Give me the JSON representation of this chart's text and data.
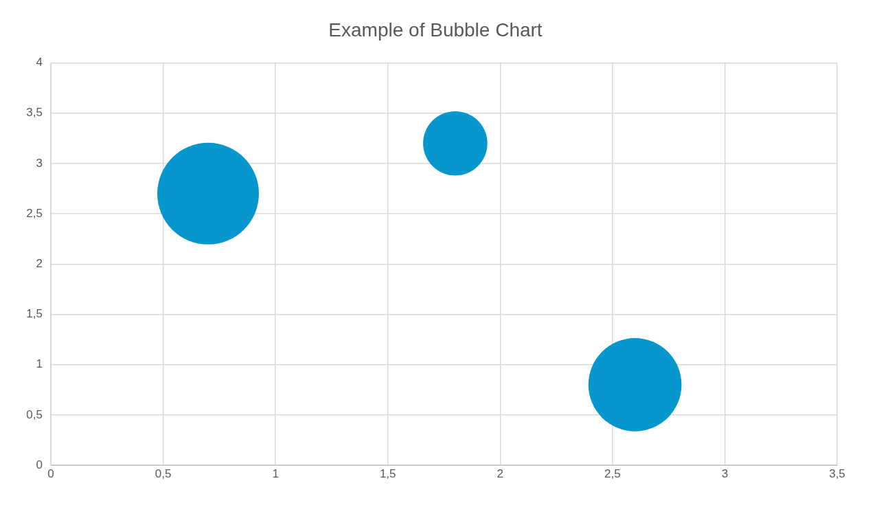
{
  "chart_data": {
    "type": "bubble",
    "title": "Example of Bubble Chart",
    "x": [
      0.7,
      1.8,
      2.6
    ],
    "values": [
      2.7,
      3.2,
      0.8
    ],
    "sizes": [
      1,
      0.4,
      0.84
    ],
    "color": "#0897cc",
    "xlim": [
      0,
      3.5
    ],
    "xticks": [
      0,
      {
        "value": 0.5,
        "label": "0,5"
      },
      1,
      {
        "value": 1.5,
        "label": "1,5"
      },
      2,
      {
        "value": 2.5,
        "label": "2,5"
      },
      3,
      {
        "value": 3.5,
        "label": "3,5"
      }
    ],
    "ylim": [
      0,
      4
    ],
    "yticks": [
      0,
      {
        "value": 0.5,
        "label": "0,5"
      },
      1,
      {
        "value": 1.5,
        "label": "1,5"
      },
      2,
      {
        "value": 2.5,
        "label": "2,5"
      },
      3,
      {
        "value": 3.5,
        "label": "3,5"
      },
      4
    ],
    "grid": true,
    "legend": false
  }
}
